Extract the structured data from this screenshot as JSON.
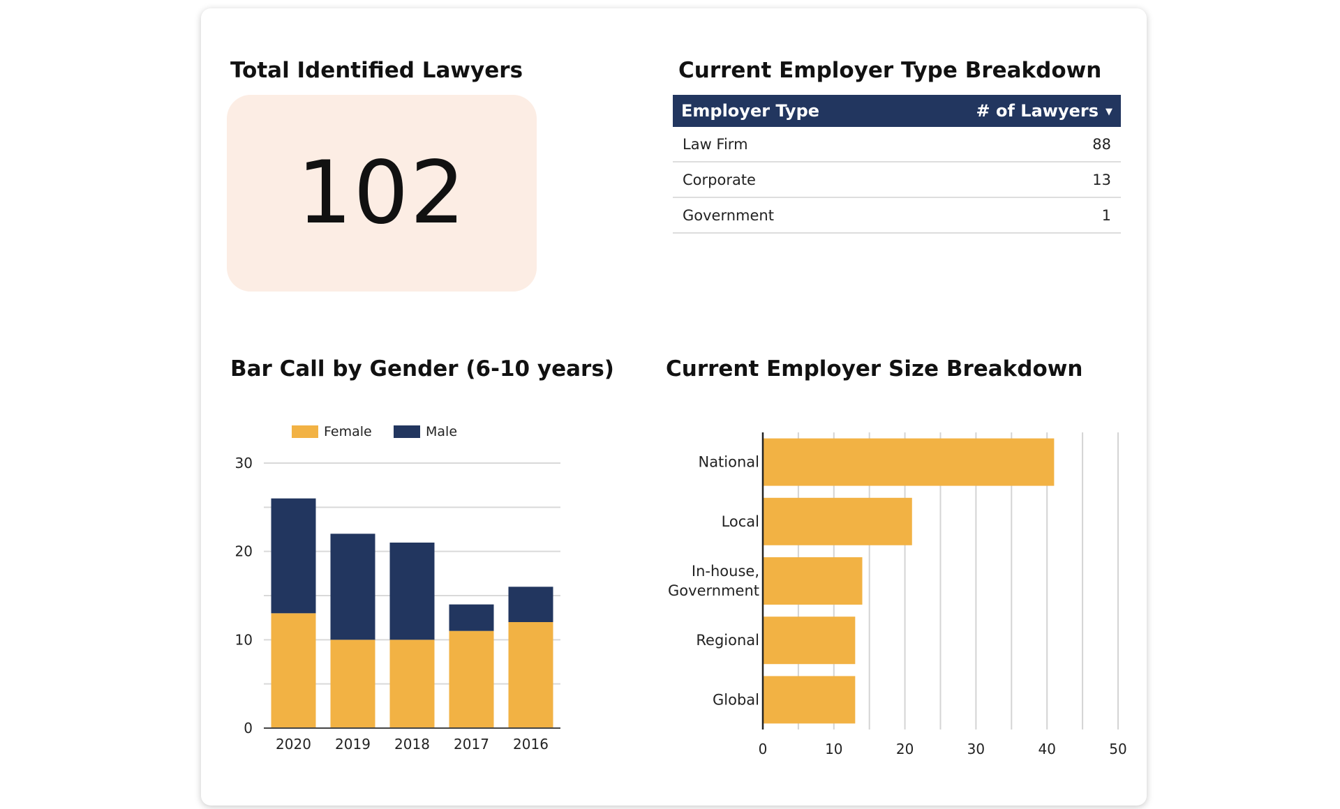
{
  "kpi": {
    "title": "Total Identified Lawyers",
    "value": "102"
  },
  "employer_type": {
    "title": "Current Employer Type Breakdown",
    "header": {
      "col1": "Employer Type",
      "col2": "# of Lawyers",
      "sort_icon": "triangle-down-icon"
    },
    "rows": [
      {
        "type": "Law Firm",
        "count": "88"
      },
      {
        "type": "Corporate",
        "count": "13"
      },
      {
        "type": "Government",
        "count": "1"
      }
    ]
  },
  "colors": {
    "female": "#f2b244",
    "male": "#22365f",
    "header_bg": "#22365f",
    "kpi_bg": "#fcede4"
  },
  "chart_data": [
    {
      "type": "bar",
      "stacked": true,
      "title": "Bar Call by Gender (6-10 years)",
      "categories": [
        "2020",
        "2019",
        "2018",
        "2017",
        "2016"
      ],
      "series": [
        {
          "name": "Female",
          "values": [
            13,
            10,
            10,
            11,
            12
          ]
        },
        {
          "name": "Male",
          "values": [
            13,
            12,
            11,
            3,
            4
          ]
        }
      ],
      "yticks": [
        "0",
        "10",
        "20",
        "30"
      ],
      "ylim": [
        0,
        30
      ],
      "legend": "top",
      "grid": true
    },
    {
      "type": "bar",
      "orientation": "horizontal",
      "title": "Current Employer Size Breakdown",
      "categories": [
        [
          "National"
        ],
        [
          "Local"
        ],
        [
          "In-house,",
          "Government"
        ],
        [
          "Regional"
        ],
        [
          "Global"
        ]
      ],
      "values": [
        41,
        21,
        14,
        13,
        13
      ],
      "xticks": [
        "0",
        "10",
        "20",
        "30",
        "40",
        "50"
      ],
      "xlim": [
        0,
        50
      ],
      "grid": true
    }
  ]
}
